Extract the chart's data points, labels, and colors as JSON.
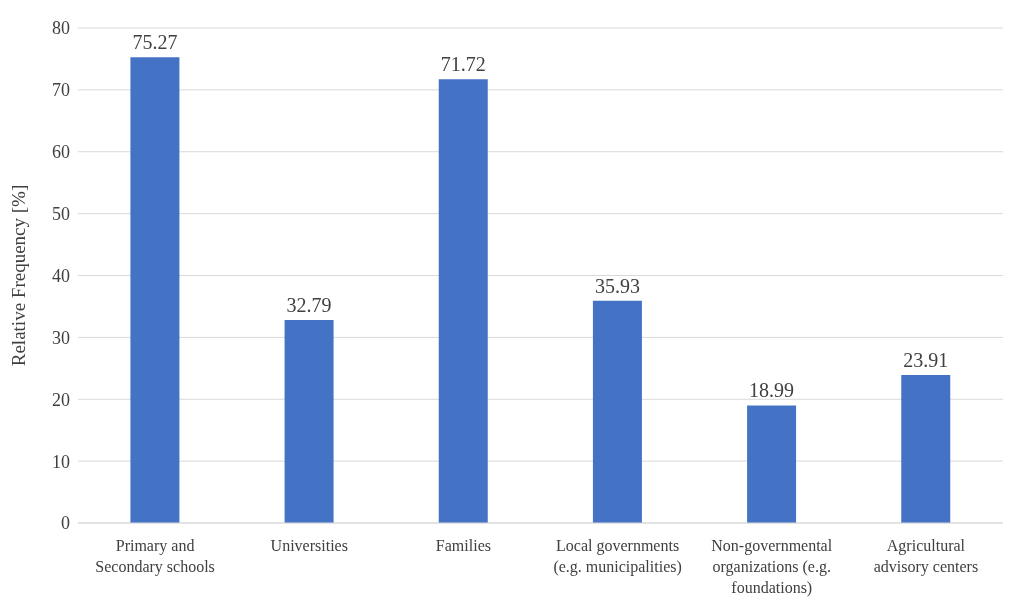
{
  "chart_data": {
    "type": "bar",
    "ylabel": "Relative Frequency [%]",
    "categories": [
      "Primary and\nSecondary schools",
      "Universities",
      "Families",
      "Local governments\n(e.g. municipalities)",
      "Non-governmental\norganizations (e.g.\nfoundations)",
      "Agricultural\nadvisory centers"
    ],
    "values": [
      75.27,
      32.79,
      71.72,
      35.93,
      18.99,
      23.91
    ],
    "color": "#4472c4",
    "ylim": [
      0,
      80
    ],
    "yticks": [
      0,
      10,
      20,
      30,
      40,
      50,
      60,
      70,
      80
    ],
    "grid": "y",
    "data_labels": true
  }
}
